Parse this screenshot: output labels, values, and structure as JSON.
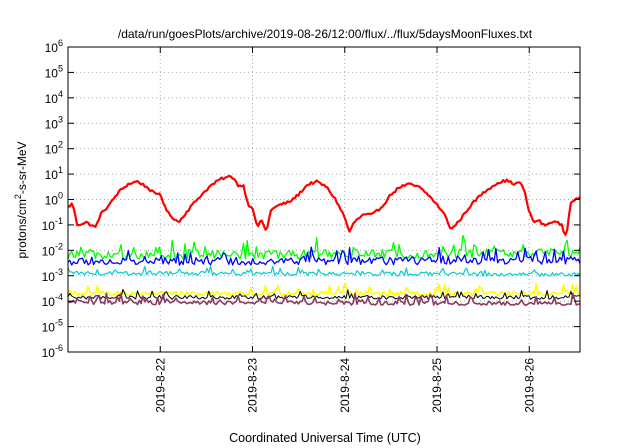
{
  "chart_data": {
    "type": "line",
    "title": "/data/run/goesPlots/archive/2019-08-26/12:00/flux/../flux/5daysMoonFluxes.txt",
    "xlabel": "Coordinated Universal Time (UTC)",
    "ylabel_parts": {
      "prefix": "protons/cm",
      "sup": "2",
      "suffix": "-s-sr-MeV"
    },
    "yscale": "log",
    "ylim": [
      1e-06,
      1000000.0
    ],
    "xlim_days": [
      21.0,
      26.55
    ],
    "grid": true,
    "ytick_exponents": [
      -6,
      -5,
      -4,
      -3,
      -2,
      -1,
      0,
      1,
      2,
      3,
      4,
      5,
      6
    ],
    "xticks": [
      {
        "label": "2019-8-22",
        "day": 22
      },
      {
        "label": "2019-8-23",
        "day": 23
      },
      {
        "label": "2019-8-24",
        "day": 24
      },
      {
        "label": "2019-8-25",
        "day": 25
      },
      {
        "label": "2019-8-26",
        "day": 26
      }
    ],
    "series": [
      {
        "color": "#ff0000",
        "width": 2.2,
        "noise": 0.1,
        "spikes": 0.0,
        "points": [
          [
            21.0,
            -0.3
          ],
          [
            21.05,
            -0.15
          ],
          [
            21.1,
            -1.0
          ],
          [
            21.2,
            -0.9
          ],
          [
            21.3,
            -1.1
          ],
          [
            21.35,
            -0.6
          ],
          [
            21.45,
            -0.2
          ],
          [
            21.55,
            0.3
          ],
          [
            21.65,
            0.6
          ],
          [
            21.75,
            0.72
          ],
          [
            21.85,
            0.5
          ],
          [
            21.95,
            0.2
          ],
          [
            22.0,
            0.25
          ],
          [
            22.05,
            -0.3
          ],
          [
            22.1,
            -0.6
          ],
          [
            22.2,
            -0.9
          ],
          [
            22.25,
            -0.65
          ],
          [
            22.35,
            -0.2
          ],
          [
            22.45,
            0.2
          ],
          [
            22.55,
            0.55
          ],
          [
            22.65,
            0.8
          ],
          [
            22.75,
            0.9
          ],
          [
            22.8,
            0.85
          ],
          [
            22.85,
            0.5
          ],
          [
            22.9,
            0.6
          ],
          [
            22.95,
            -0.2
          ],
          [
            23.0,
            -0.3
          ],
          [
            23.05,
            -1.1
          ],
          [
            23.1,
            -0.8
          ],
          [
            23.15,
            -1.3
          ],
          [
            23.2,
            -0.4
          ],
          [
            23.3,
            -0.2
          ],
          [
            23.4,
            -0.1
          ],
          [
            23.5,
            0.2
          ],
          [
            23.6,
            0.6
          ],
          [
            23.7,
            0.7
          ],
          [
            23.8,
            0.5
          ],
          [
            23.9,
            0.0
          ],
          [
            24.0,
            -0.7
          ],
          [
            24.05,
            -1.3
          ],
          [
            24.1,
            -0.9
          ],
          [
            24.2,
            -0.6
          ],
          [
            24.3,
            -0.6
          ],
          [
            24.4,
            -0.3
          ],
          [
            24.5,
            0.2
          ],
          [
            24.6,
            0.5
          ],
          [
            24.7,
            0.6
          ],
          [
            24.8,
            0.5
          ],
          [
            24.9,
            0.2
          ],
          [
            25.0,
            -0.2
          ],
          [
            25.1,
            -0.7
          ],
          [
            25.15,
            -1.2
          ],
          [
            25.25,
            -0.8
          ],
          [
            25.35,
            -0.3
          ],
          [
            25.45,
            0.1
          ],
          [
            25.55,
            0.4
          ],
          [
            25.65,
            0.65
          ],
          [
            25.75,
            0.75
          ],
          [
            25.85,
            0.6
          ],
          [
            25.9,
            0.7
          ],
          [
            25.95,
            0.3
          ],
          [
            26.0,
            -0.5
          ],
          [
            26.05,
            -0.9
          ],
          [
            26.1,
            -0.8
          ],
          [
            26.15,
            -1.0
          ],
          [
            26.2,
            -1.0
          ],
          [
            26.25,
            -0.85
          ],
          [
            26.3,
            -0.9
          ],
          [
            26.35,
            -1.0
          ],
          [
            26.4,
            -1.5
          ],
          [
            26.45,
            -0.1
          ],
          [
            26.5,
            0.0
          ],
          [
            26.55,
            0.05
          ]
        ]
      },
      {
        "color": "#00ff00",
        "width": 1.3,
        "noise": 0.35,
        "spikes": 0.6,
        "points": [
          [
            21.0,
            -2.2
          ],
          [
            26.55,
            -2.1
          ]
        ]
      },
      {
        "color": "#0000ff",
        "width": 1.3,
        "noise": 0.3,
        "spikes": 0.5,
        "points": [
          [
            21.0,
            -2.45
          ],
          [
            26.55,
            -2.4
          ]
        ]
      },
      {
        "color": "#00ced1",
        "width": 1.2,
        "noise": 0.15,
        "spikes": 0.25,
        "points": [
          [
            21.0,
            -2.9
          ],
          [
            26.55,
            -2.95
          ]
        ]
      },
      {
        "color": "#ffff00",
        "width": 1.6,
        "noise": 0.18,
        "spikes": 0.35,
        "points": [
          [
            21.0,
            -3.7
          ],
          [
            26.55,
            -3.7
          ]
        ]
      },
      {
        "color": "#000000",
        "width": 1.0,
        "noise": 0.15,
        "spikes": 0.3,
        "points": [
          [
            21.0,
            -3.85
          ],
          [
            26.55,
            -3.85
          ]
        ]
      },
      {
        "color": "#8b3a62",
        "width": 1.6,
        "noise": 0.15,
        "spikes": 0.35,
        "points": [
          [
            21.0,
            -4.05
          ],
          [
            26.55,
            -4.1
          ]
        ]
      }
    ]
  }
}
